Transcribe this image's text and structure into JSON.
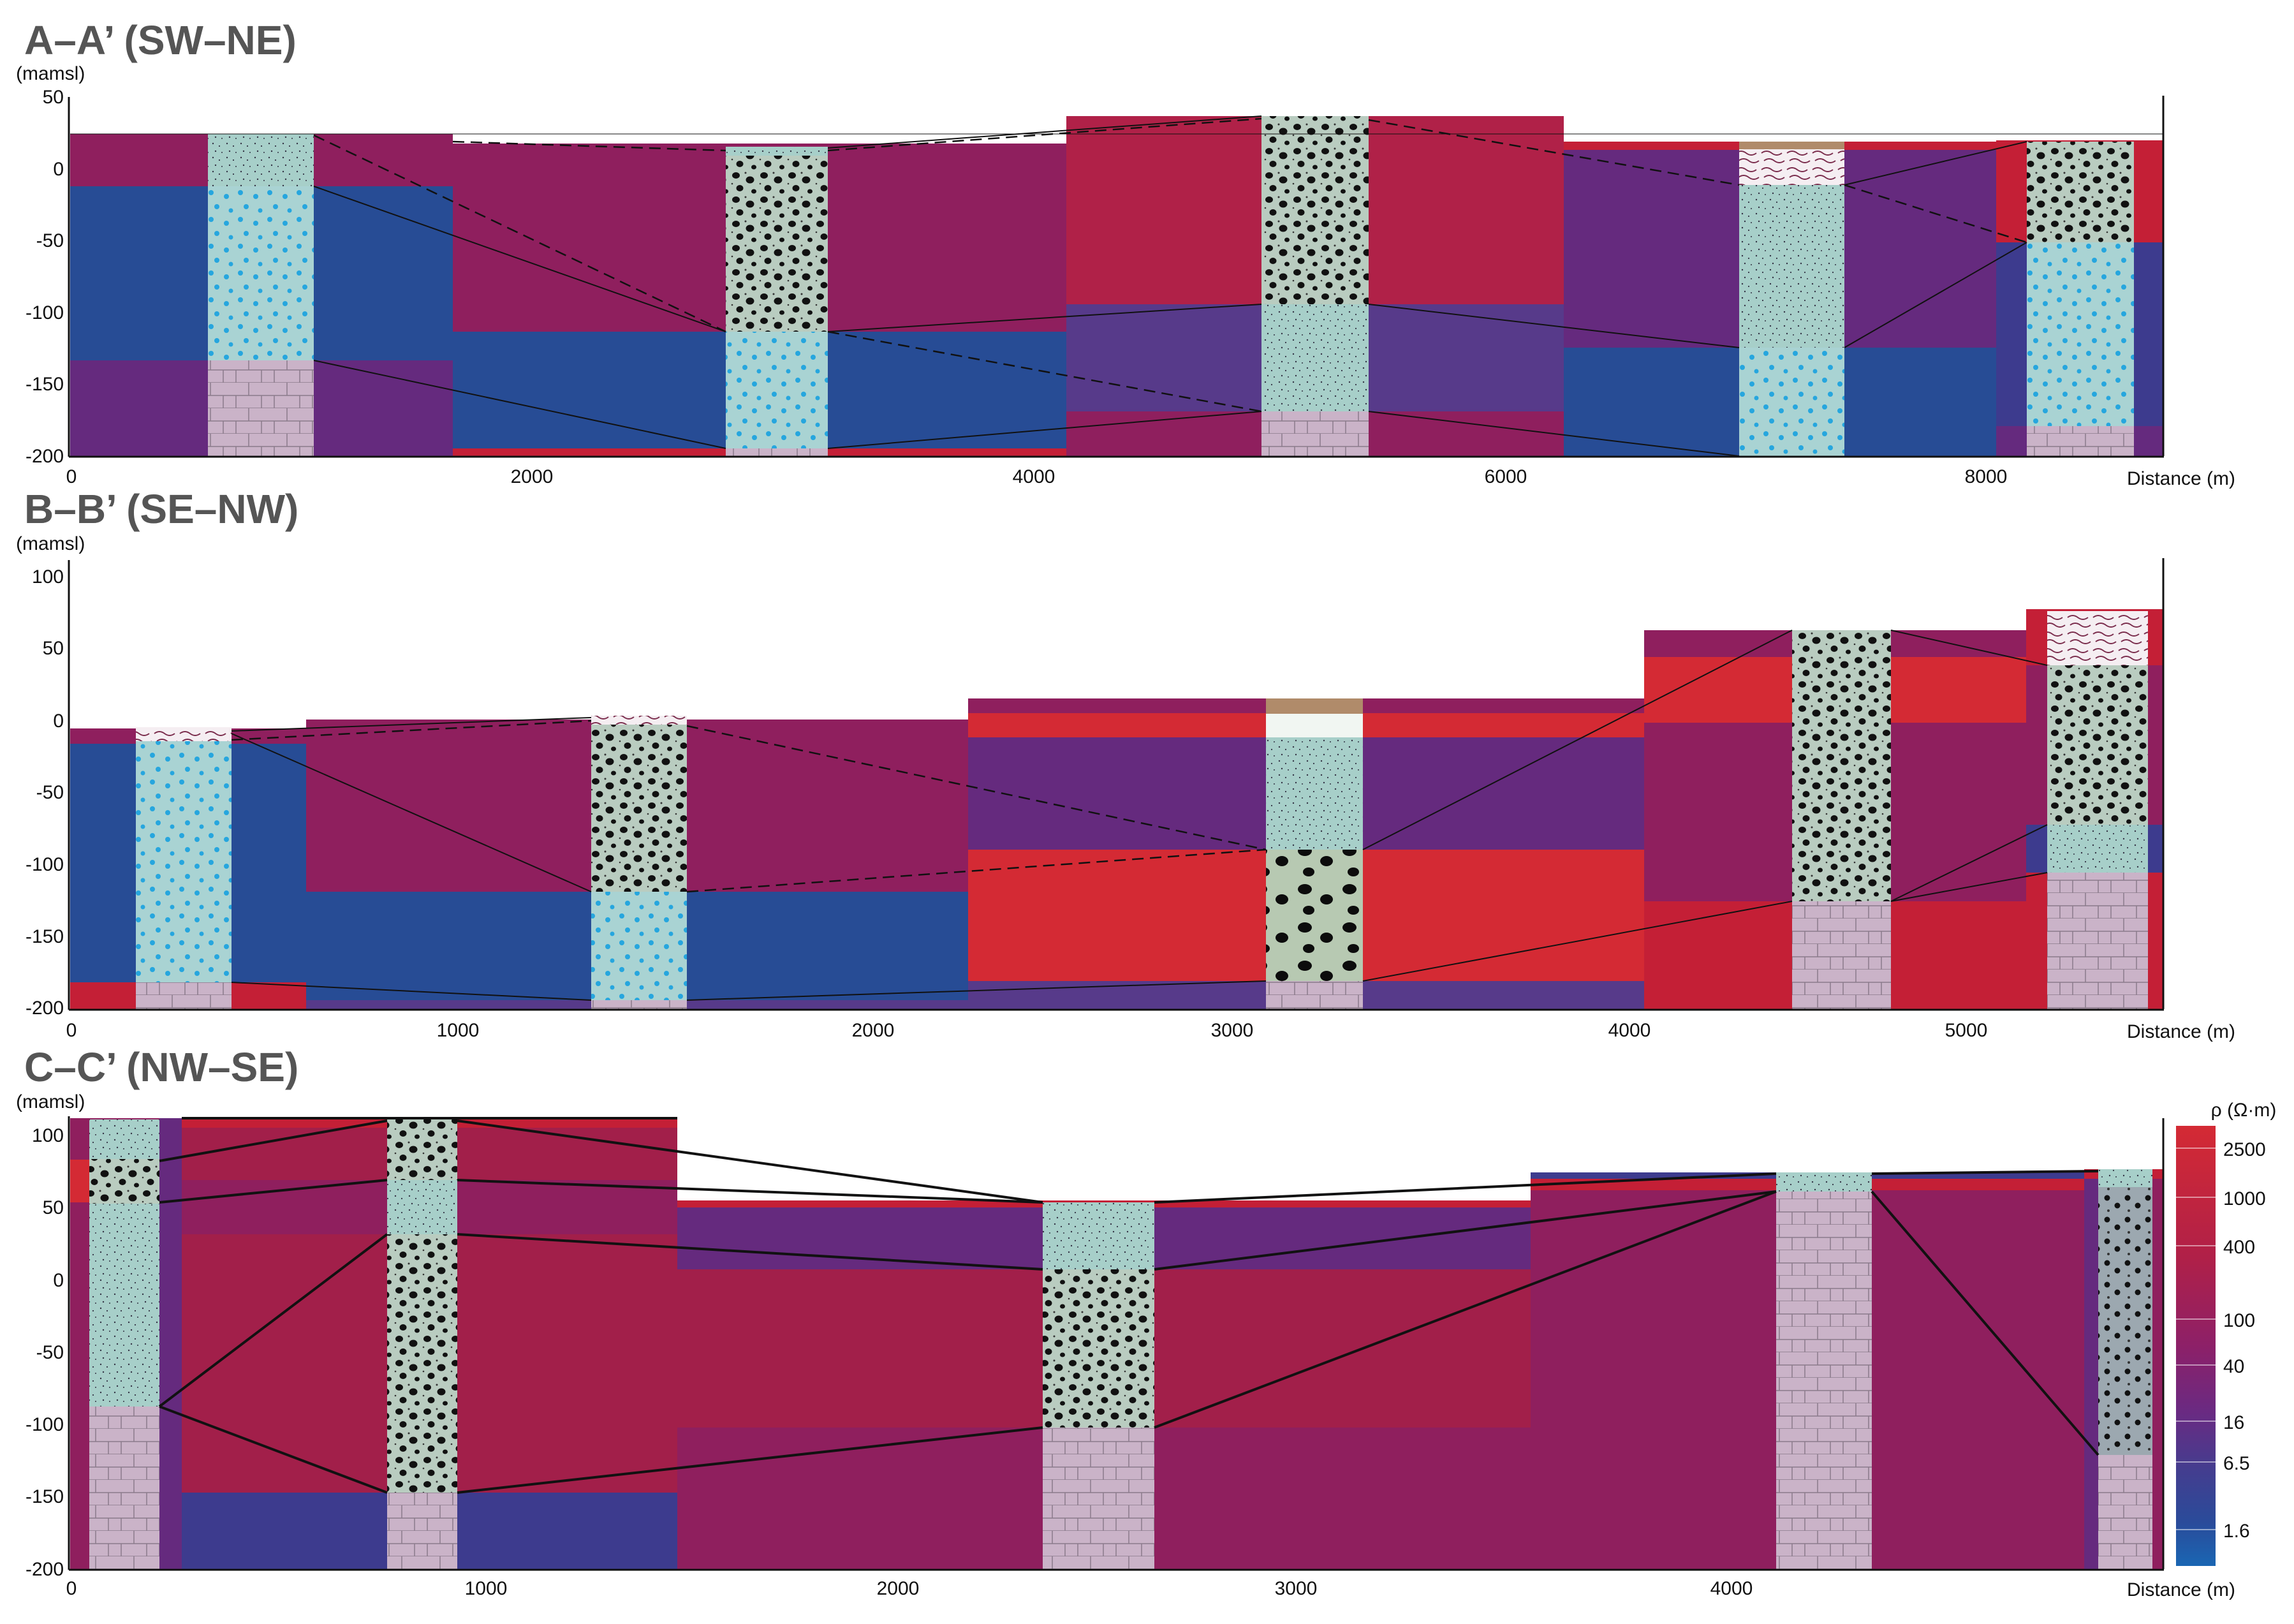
{
  "sections": [
    {
      "title": "A–A’ (SW–NE)",
      "y_unit": "(mamsl)",
      "y_ticks": [
        "50",
        "0",
        "-50",
        "-100",
        "-150",
        "-200"
      ],
      "x_ticks": [
        "0",
        "2000",
        "4000",
        "6000",
        "8000"
      ],
      "x_unit": "Distance (m)",
      "ylim": [
        -200,
        50
      ],
      "xlim": [
        0,
        8870
      ],
      "x_tick_values": [
        0,
        2000,
        4000,
        6000,
        8000
      ]
    },
    {
      "title": "B–B’ (SE–NW)",
      "y_unit": "(mamsl)",
      "y_ticks": [
        "100",
        "50",
        "0",
        "-50",
        "-100",
        "-150",
        "-200"
      ],
      "x_ticks": [
        "0",
        "1000",
        "2000",
        "3000",
        "4000",
        "5000"
      ],
      "x_unit": "Distance (m)",
      "ylim": [
        -200,
        100
      ],
      "xlim": [
        0,
        5510
      ],
      "x_tick_values": [
        0,
        1000,
        2000,
        3000,
        4000,
        5000
      ]
    },
    {
      "title": "C–C’ (NW–SE)",
      "y_unit": "(mamsl)",
      "y_ticks": [
        "100",
        "50",
        "0",
        "-50",
        "-100",
        "-150",
        "-200"
      ],
      "x_ticks": [
        "0",
        "1000",
        "2000",
        "3000",
        "4000"
      ],
      "x_unit": "Distance (m)",
      "ylim": [
        -200,
        100
      ],
      "xlim": [
        0,
        4940
      ],
      "x_tick_values": [
        0,
        1000,
        2000,
        3000,
        4000
      ]
    }
  ],
  "legend": {
    "title": "ρ (Ω·m)",
    "labels": [
      "2500",
      "1000",
      "400",
      "100",
      "40",
      "16",
      "6.5",
      "1.6"
    ]
  },
  "colors": {
    "very_high": "#d42a34",
    "high": "#b22146",
    "crimson": "#a21f4a",
    "magenta": "#8f1f5e",
    "purple": "#652a7e",
    "violet": "#573a8a",
    "indigo": "#3d3b8e",
    "blue": "#274c95",
    "deep_blue": "#1f5aa6",
    "well_gravel": "#b9ccc0",
    "well_sand_blue": "#a9d3d3",
    "well_fine": "#9fcfc8",
    "well_clay": "#c7b1c6",
    "well_brown": "#b08b6a",
    "well_white": "#f1f6f2",
    "dot_black": "#111111",
    "dot_blue": "#26a6de"
  }
}
